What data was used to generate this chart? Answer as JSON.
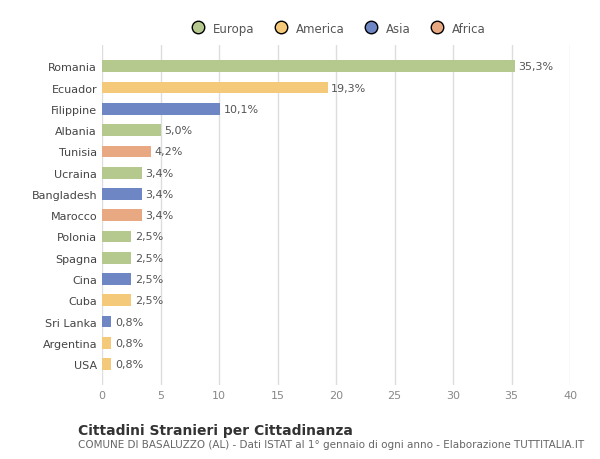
{
  "countries": [
    "Romania",
    "Ecuador",
    "Filippine",
    "Albania",
    "Tunisia",
    "Ucraina",
    "Bangladesh",
    "Marocco",
    "Polonia",
    "Spagna",
    "Cina",
    "Cuba",
    "Sri Lanka",
    "Argentina",
    "USA"
  ],
  "values": [
    35.3,
    19.3,
    10.1,
    5.0,
    4.2,
    3.4,
    3.4,
    3.4,
    2.5,
    2.5,
    2.5,
    2.5,
    0.8,
    0.8,
    0.8
  ],
  "labels": [
    "35,3%",
    "19,3%",
    "10,1%",
    "5,0%",
    "4,2%",
    "3,4%",
    "3,4%",
    "3,4%",
    "2,5%",
    "2,5%",
    "2,5%",
    "2,5%",
    "0,8%",
    "0,8%",
    "0,8%"
  ],
  "colors": [
    "#b5c98e",
    "#f5c97a",
    "#6e86c4",
    "#b5c98e",
    "#e8a882",
    "#b5c98e",
    "#6e86c4",
    "#e8a882",
    "#b5c98e",
    "#b5c98e",
    "#6e86c4",
    "#f5c97a",
    "#6e86c4",
    "#f5c97a",
    "#f5c97a"
  ],
  "categories": {
    "Europa": "#b5c98e",
    "America": "#f5c97a",
    "Asia": "#6e86c4",
    "Africa": "#e8a882"
  },
  "title": "Cittadini Stranieri per Cittadinanza",
  "subtitle": "COMUNE DI BASALUZZO (AL) - Dati ISTAT al 1° gennaio di ogni anno - Elaborazione TUTTITALIA.IT",
  "xlim": [
    0,
    40
  ],
  "xticks": [
    0,
    5,
    10,
    15,
    20,
    25,
    30,
    35,
    40
  ],
  "background_color": "#ffffff",
  "bar_height": 0.55,
  "title_fontsize": 10,
  "subtitle_fontsize": 7.5,
  "label_fontsize": 8,
  "tick_fontsize": 8,
  "legend_fontsize": 8.5
}
